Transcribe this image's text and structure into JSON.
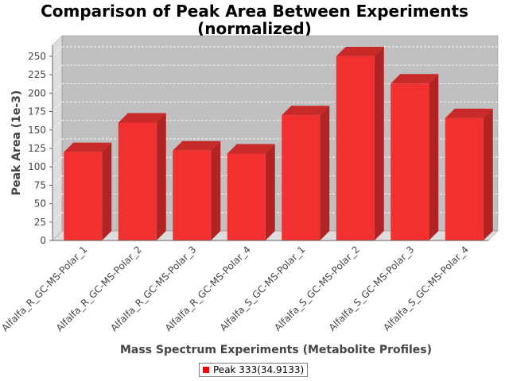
{
  "chart_data": {
    "type": "bar",
    "title_lines": [
      "Comparison of Peak Area Between Experiments",
      "(normalized)"
    ],
    "xlabel": "Mass Spectrum Experiments (Metabolite Profiles)",
    "ylabel": "Peak Area (1e-3)",
    "ylim": [
      0,
      265
    ],
    "yticks": [
      0,
      25,
      50,
      75,
      100,
      125,
      150,
      175,
      200,
      225,
      250
    ],
    "grid": true,
    "legend_position": "bottom-center",
    "categories": [
      "Alfalfa_R_GC-MS-Polar_1",
      "Alfalfa_R_GC-MS-Polar_2",
      "Alfalfa_R_GC-MS-Polar_3",
      "Alfalfa_R_GC-MS-Polar_4",
      "Alfalfa_S_GC-MS-Polar_1",
      "Alfalfa_S_GC-MS-Polar_2",
      "Alfalfa_S_GC-MS-Polar_3",
      "Alfalfa_S_GC-MS-Polar_4"
    ],
    "series": [
      {
        "name": "Peak 333(34.9133)",
        "color": "#ff0000",
        "values": [
          120,
          160,
          122,
          118,
          170,
          250,
          213,
          166
        ]
      }
    ]
  },
  "colors": {
    "plot_background": "#c0c0c0",
    "wall": "#dddddd",
    "bar_front": "#f23030",
    "bar_side": "#b22424",
    "bar_top": "#c82a2a"
  }
}
